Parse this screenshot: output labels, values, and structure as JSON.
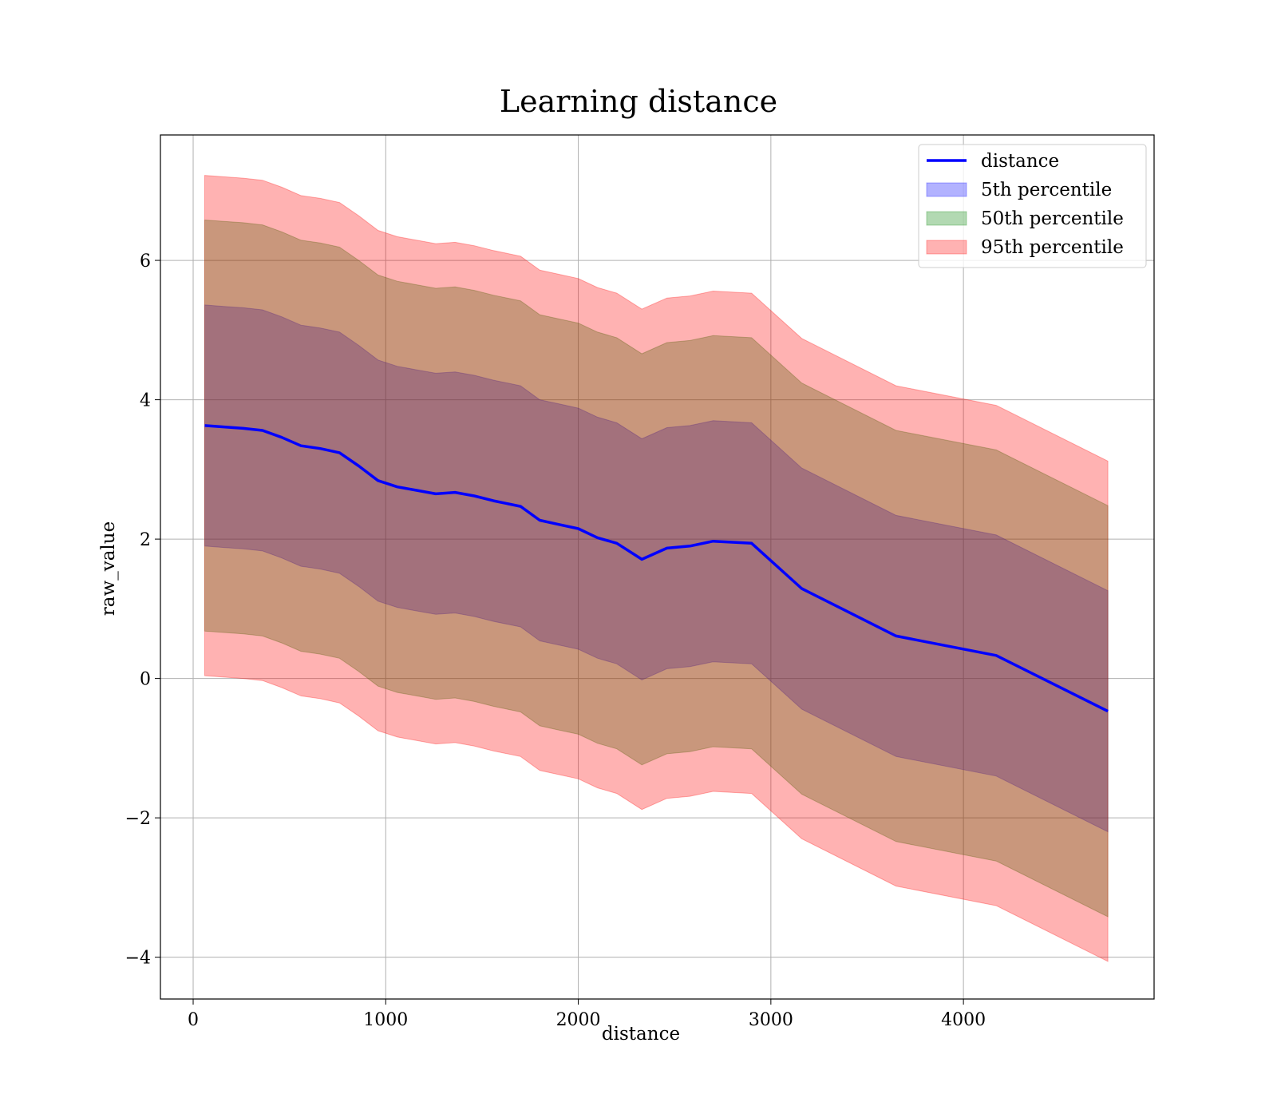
{
  "chart_data": {
    "type": "area",
    "title": "Learning distance",
    "xlabel": "distance",
    "ylabel": "raw_value",
    "xlim": [
      -170,
      4990
    ],
    "ylim": [
      -4.6,
      7.8
    ],
    "xticks": [
      0,
      1000,
      2000,
      3000,
      4000
    ],
    "xtick_labels": [
      "0",
      "1000",
      "2000",
      "3000",
      "4000"
    ],
    "yticks": [
      -4,
      -2,
      0,
      2,
      4,
      6
    ],
    "ytick_labels": [
      "−4",
      "−2",
      "0",
      "2",
      "4",
      "6"
    ],
    "grid": true,
    "legend_position": "top-right",
    "x": [
      60,
      160,
      260,
      360,
      460,
      560,
      660,
      760,
      860,
      960,
      1060,
      1160,
      1260,
      1360,
      1460,
      1560,
      1700,
      1800,
      1900,
      2000,
      2100,
      2200,
      2330,
      2460,
      2580,
      2700,
      2900,
      3160,
      3650,
      4170,
      4750
    ],
    "series": [
      {
        "name": "distance",
        "kind": "line",
        "color": "#0000ff",
        "values": [
          3.63,
          3.61,
          3.59,
          3.56,
          3.46,
          3.34,
          3.3,
          3.24,
          3.05,
          2.84,
          2.75,
          2.7,
          2.65,
          2.67,
          2.62,
          2.55,
          2.47,
          2.27,
          2.21,
          2.15,
          2.02,
          1.94,
          1.71,
          1.87,
          1.9,
          1.97,
          1.94,
          1.29,
          0.61,
          0.33,
          -0.47
        ]
      },
      {
        "name": "5th percentile",
        "kind": "band",
        "color": "#0000ff",
        "lower": [
          1.9,
          1.88,
          1.86,
          1.83,
          1.73,
          1.61,
          1.57,
          1.51,
          1.32,
          1.11,
          1.02,
          0.97,
          0.92,
          0.94,
          0.89,
          0.82,
          0.74,
          0.54,
          0.48,
          0.42,
          0.29,
          0.21,
          -0.02,
          0.14,
          0.17,
          0.24,
          0.21,
          -0.44,
          -1.12,
          -1.4,
          -2.2
        ],
        "upper": [
          5.36,
          5.34,
          5.32,
          5.29,
          5.19,
          5.07,
          5.03,
          4.97,
          4.78,
          4.57,
          4.48,
          4.43,
          4.38,
          4.4,
          4.35,
          4.28,
          4.2,
          4.0,
          3.94,
          3.88,
          3.75,
          3.67,
          3.44,
          3.6,
          3.63,
          3.7,
          3.67,
          3.02,
          2.34,
          2.06,
          1.26
        ]
      },
      {
        "name": "50th percentile",
        "kind": "band",
        "color": "#008000",
        "lower": [
          0.68,
          0.66,
          0.64,
          0.61,
          0.51,
          0.39,
          0.35,
          0.29,
          0.1,
          -0.11,
          -0.2,
          -0.25,
          -0.3,
          -0.28,
          -0.33,
          -0.4,
          -0.48,
          -0.68,
          -0.74,
          -0.8,
          -0.93,
          -1.01,
          -1.24,
          -1.08,
          -1.05,
          -0.98,
          -1.01,
          -1.66,
          -2.34,
          -2.62,
          -3.42
        ],
        "upper": [
          6.58,
          6.56,
          6.54,
          6.51,
          6.41,
          6.29,
          6.25,
          6.19,
          6.0,
          5.79,
          5.7,
          5.65,
          5.6,
          5.62,
          5.57,
          5.5,
          5.42,
          5.22,
          5.16,
          5.1,
          4.97,
          4.89,
          4.66,
          4.82,
          4.85,
          4.92,
          4.89,
          4.24,
          3.56,
          3.28,
          2.48
        ]
      },
      {
        "name": "95th percentile",
        "kind": "band",
        "color": "#ff0000",
        "lower": [
          0.04,
          0.02,
          0.0,
          -0.03,
          -0.13,
          -0.25,
          -0.29,
          -0.35,
          -0.54,
          -0.75,
          -0.84,
          -0.89,
          -0.94,
          -0.92,
          -0.97,
          -1.04,
          -1.12,
          -1.32,
          -1.38,
          -1.44,
          -1.57,
          -1.65,
          -1.88,
          -1.72,
          -1.69,
          -1.62,
          -1.65,
          -2.3,
          -2.98,
          -3.26,
          -4.06
        ],
        "upper": [
          7.22,
          7.2,
          7.18,
          7.15,
          7.05,
          6.93,
          6.89,
          6.83,
          6.64,
          6.43,
          6.34,
          6.29,
          6.24,
          6.26,
          6.21,
          6.14,
          6.06,
          5.86,
          5.8,
          5.74,
          5.61,
          5.53,
          5.3,
          5.46,
          5.49,
          5.56,
          5.53,
          4.88,
          4.2,
          3.92,
          3.12
        ]
      }
    ]
  }
}
